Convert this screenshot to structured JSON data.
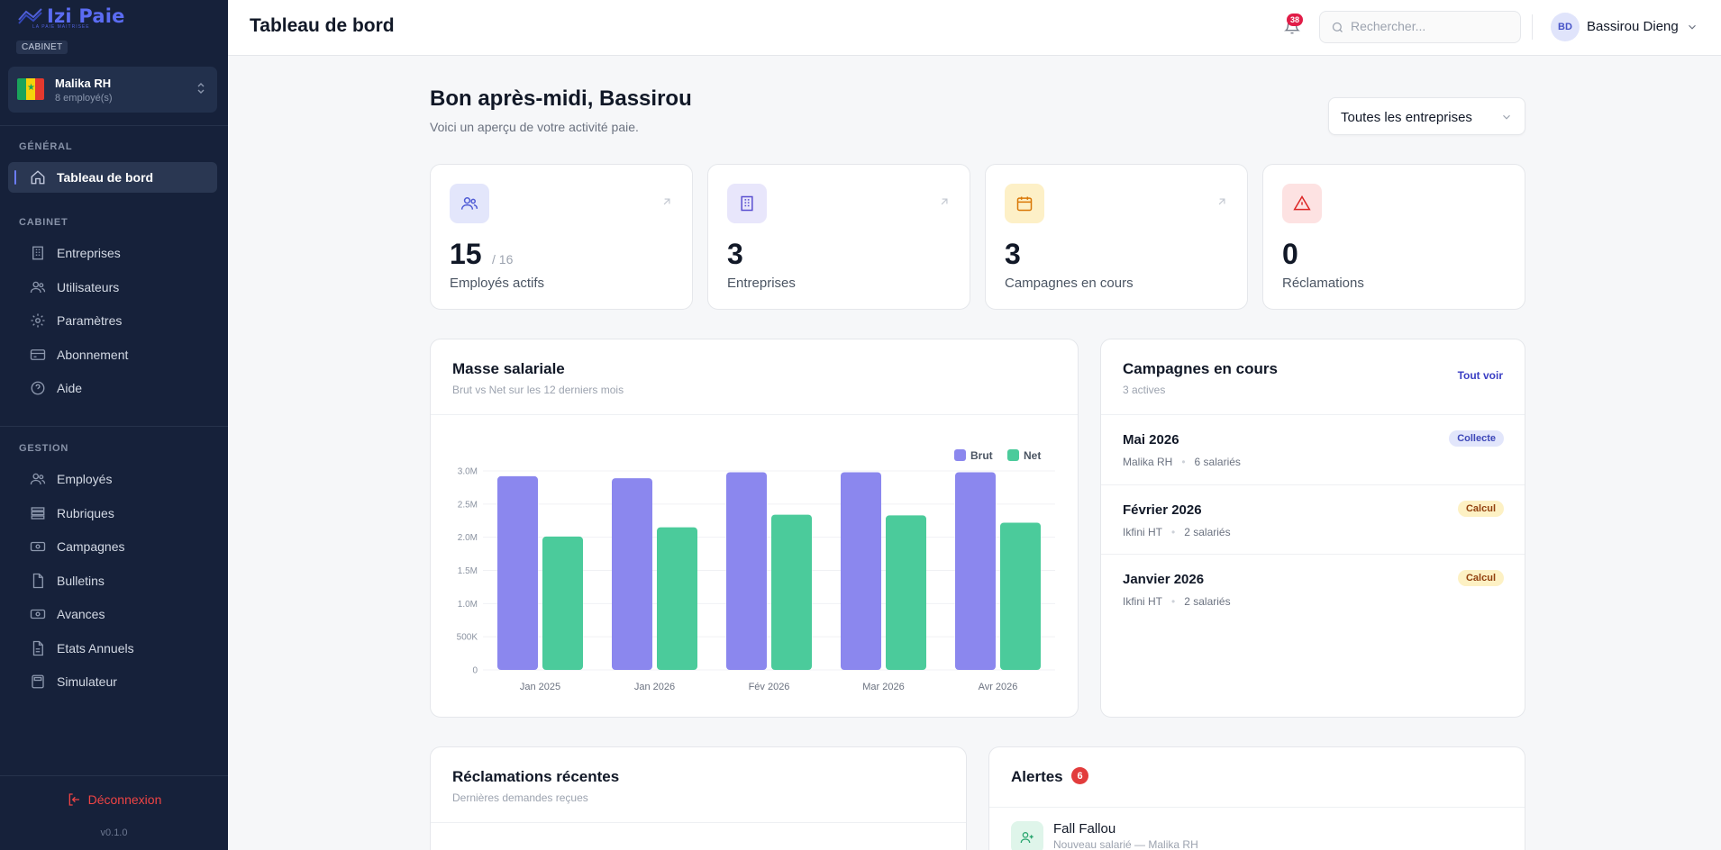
{
  "brand": {
    "name": "Izi Paie",
    "tagline": "LA PAIE MAITRISEE",
    "section_badge": "CABINET"
  },
  "org": {
    "name": "Malika RH",
    "employees": "8 employé(s)"
  },
  "sidebar": {
    "sections": [
      {
        "label": "GÉNÉRAL",
        "items": [
          {
            "label": "Tableau de bord",
            "icon": "home-icon",
            "active": true
          }
        ]
      },
      {
        "label": "CABINET",
        "items": [
          {
            "label": "Entreprises",
            "icon": "building-icon"
          },
          {
            "label": "Utilisateurs",
            "icon": "users-icon"
          },
          {
            "label": "Paramètres",
            "icon": "gear-icon"
          },
          {
            "label": "Abonnement",
            "icon": "credit-card-icon"
          },
          {
            "label": "Aide",
            "icon": "help-circle-icon"
          }
        ]
      },
      {
        "label": "GESTION",
        "items": [
          {
            "label": "Employés",
            "icon": "users-icon"
          },
          {
            "label": "Rubriques",
            "icon": "list-icon"
          },
          {
            "label": "Campagnes",
            "icon": "money-icon"
          },
          {
            "label": "Bulletins",
            "icon": "file-icon"
          },
          {
            "label": "Avances",
            "icon": "money-icon"
          },
          {
            "label": "Etats Annuels",
            "icon": "file-icon"
          },
          {
            "label": "Simulateur",
            "icon": "calculator-icon"
          }
        ]
      }
    ],
    "logout": "Déconnexion",
    "version": "v0.1.0"
  },
  "header": {
    "title": "Tableau de bord",
    "notif_count": "38",
    "search_placeholder": "Rechercher...",
    "user_initials": "BD",
    "user_name": "Bassirou Dieng"
  },
  "main": {
    "greeting": "Bon après-midi, Bassirou",
    "subtitle": "Voici un aperçu de votre activité paie.",
    "entreprise_filter": "Toutes les entreprises"
  },
  "stats": [
    {
      "value": "15",
      "of": "/ 16",
      "label": "Employés actifs",
      "icon": "users-icon",
      "bg": "#e3e6fb",
      "color": "#4f5bd5"
    },
    {
      "value": "3",
      "of": "",
      "label": "Entreprises",
      "icon": "building-icon",
      "bg": "#e8e6fb",
      "color": "#5a4fd0"
    },
    {
      "value": "3",
      "of": "",
      "label": "Campagnes en cours",
      "icon": "calendar-icon",
      "bg": "#fdf0c7",
      "color": "#d97706"
    },
    {
      "value": "0",
      "of": "",
      "label": "Réclamations",
      "icon": "alert-triangle-icon",
      "bg": "#fde2e2",
      "color": "#dc2626"
    }
  ],
  "payroll_card": {
    "title": "Masse salariale",
    "subtitle": "Brut vs Net sur les 12 derniers mois"
  },
  "chart_data": {
    "type": "bar",
    "categories": [
      "Jan 2025",
      "Jan 2026",
      "Fév 2026",
      "Mar 2026",
      "Avr 2026"
    ],
    "series": [
      {
        "name": "Brut",
        "color": "#8b87ee",
        "values": [
          2.92,
          2.89,
          2.98,
          2.98,
          2.98
        ]
      },
      {
        "name": "Net",
        "color": "#4bcb9b",
        "values": [
          2.01,
          2.15,
          2.34,
          2.33,
          2.22
        ]
      }
    ],
    "unit": "M",
    "ylim": [
      0,
      3.0
    ],
    "yticks": [
      "0",
      "500K",
      "1.0M",
      "1.5M",
      "2.0M",
      "2.5M",
      "3.0M"
    ],
    "grid": true,
    "legend": "top-right"
  },
  "campaigns": {
    "title": "Campagnes en cours",
    "subtitle": "3 actives",
    "see_all": "Tout voir",
    "items": [
      {
        "name": "Mai 2026",
        "company": "Malika RH",
        "count": "6 salariés",
        "status": "Collecte",
        "tone": "blue"
      },
      {
        "name": "Février 2026",
        "company": "Ikfini HT",
        "count": "2 salariés",
        "status": "Calcul",
        "tone": "yellow"
      },
      {
        "name": "Janvier 2026",
        "company": "Ikfini HT",
        "count": "2 salariés",
        "status": "Calcul",
        "tone": "yellow"
      }
    ]
  },
  "claims": {
    "title": "Réclamations récentes",
    "subtitle": "Dernières demandes reçues"
  },
  "alerts": {
    "title": "Alertes",
    "count": "6",
    "items": [
      {
        "name": "Fall Fallou",
        "sub": "Nouveau salarié — Malika RH",
        "icon": "user-plus-icon"
      }
    ]
  }
}
